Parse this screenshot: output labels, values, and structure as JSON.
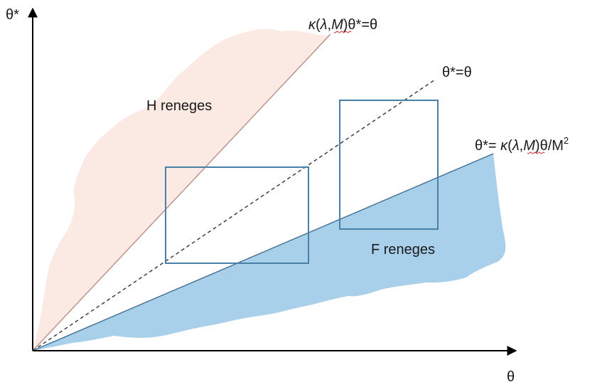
{
  "axes": {
    "y_label": "θ*",
    "x_label": "θ"
  },
  "regions": {
    "h_region_label": "H reneges",
    "f_region_label": "F reneges",
    "h_region_color": "#fbe9e3",
    "f_region_color": "#a9d0ea"
  },
  "lines": {
    "upper": {
      "kappa": "κ",
      "open": "(",
      "lambda": "λ",
      "comma": ",",
      "m": "M",
      "rest": ")θ*=θ",
      "color": "#b98f86"
    },
    "diagonal": {
      "label": "θ*=θ",
      "color": "#333333"
    },
    "lower": {
      "prefix": "θ*= ",
      "kappa": "κ",
      "open": "(",
      "lambda": "λ",
      "comma": ",",
      "m": "M",
      "rest": ")θ/M",
      "sup": "2",
      "color": "#3e6f93"
    }
  },
  "boxes": {
    "color": "#4a7fa8"
  }
}
